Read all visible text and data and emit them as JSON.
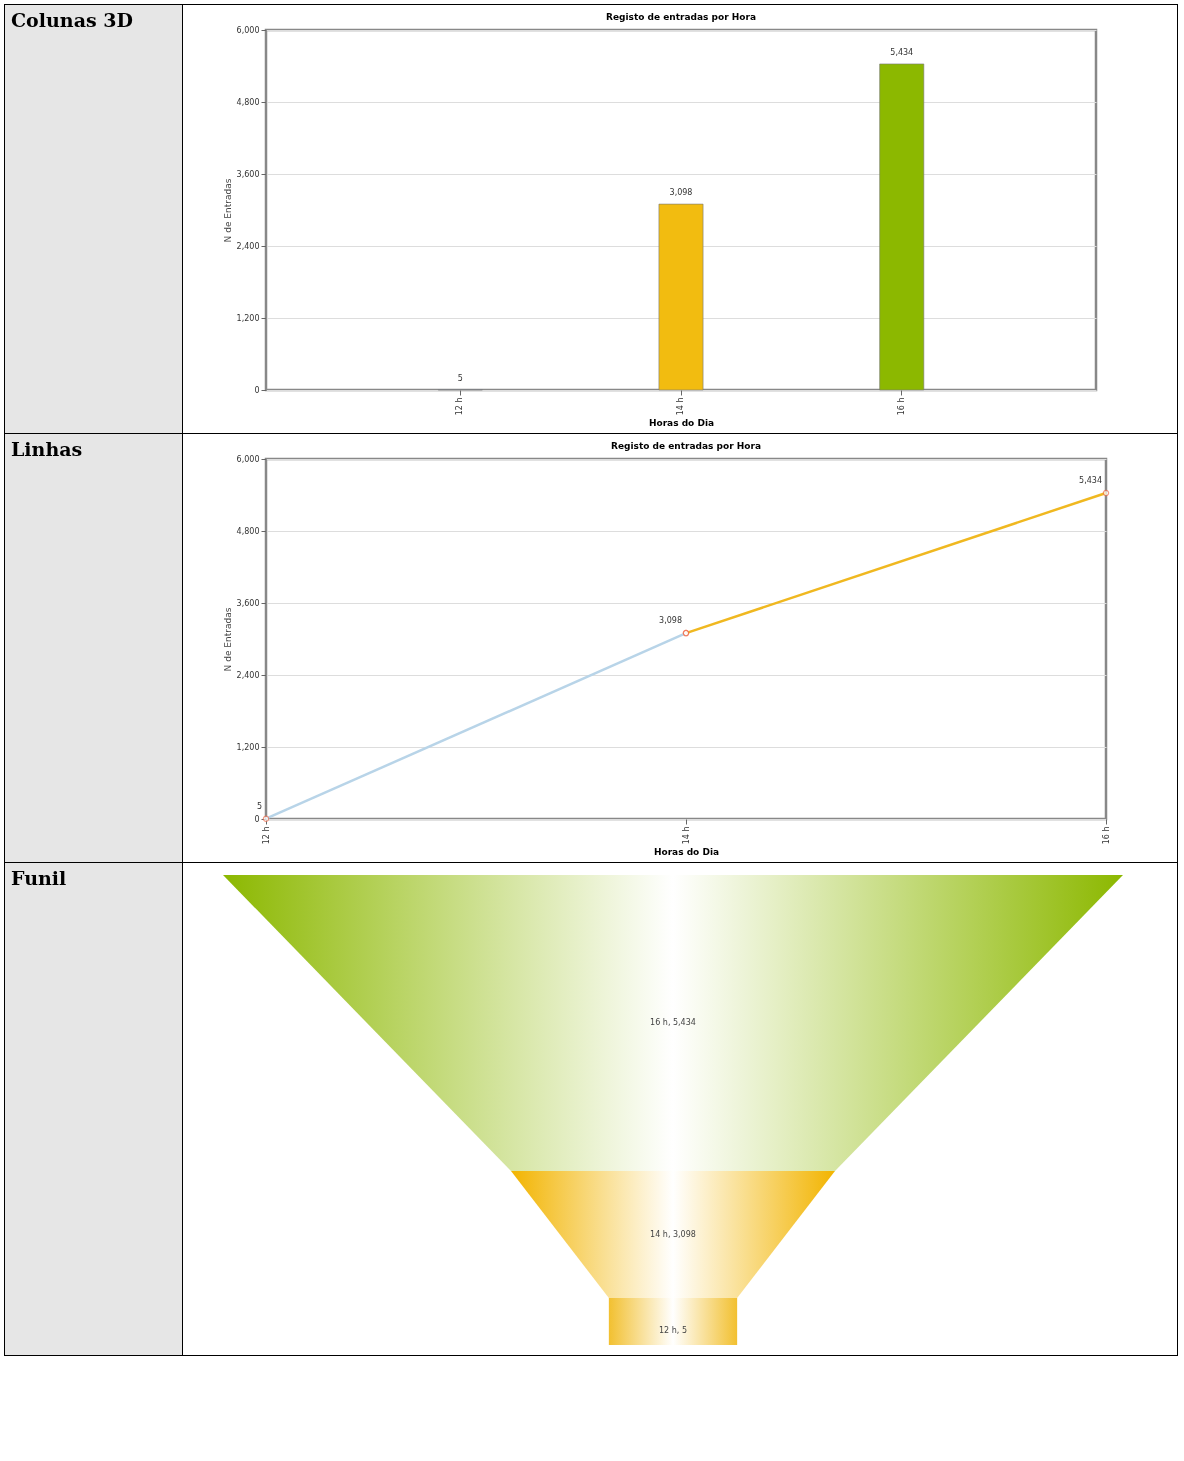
{
  "chart_data": [
    {
      "type": "bar",
      "title": "Registo de entradas por Hora",
      "xlabel": "Horas do Dia",
      "ylabel": "N de Entradas",
      "annotations": [
        "Colunas 3D"
      ],
      "categories": [
        "12 h",
        "14 h",
        "16 h"
      ],
      "values": [
        5,
        3098,
        5434
      ],
      "colors": [
        "#a8c8e0",
        "#f2bc10",
        "#8cb800"
      ],
      "value_labels": [
        "5",
        "3,098",
        "5,434"
      ],
      "ylim": [
        0,
        6000
      ],
      "yticks": [
        0,
        {
          "value": 1200,
          "label": "1,200"
        },
        {
          "value": 2400,
          "label": "2,400"
        },
        {
          "value": 3600,
          "label": "3,600"
        },
        {
          "value": 4800,
          "label": "4,800"
        },
        {
          "value": 6000,
          "label": "6,000"
        }
      ],
      "grid": "y"
    },
    {
      "type": "line",
      "title": "Registo de entradas por Hora",
      "xlabel": "Horas do Dia",
      "ylabel": "N de Entradas",
      "annotations": [
        "Linhas"
      ],
      "categories": [
        "12 h",
        "14 h",
        "16 h"
      ],
      "series": [
        {
          "color": "#b8d4e8",
          "values": [
            5,
            3098,
            null
          ],
          "value_labels": [
            "5",
            "3,098",
            null
          ]
        },
        {
          "color": "#f0b820",
          "values": [
            null,
            3098,
            5434
          ],
          "value_labels": [
            null,
            null,
            "5,434"
          ]
        }
      ],
      "ylim": [
        0,
        6000
      ],
      "yticks": [
        0,
        {
          "value": 1200,
          "label": "1,200"
        },
        {
          "value": 2400,
          "label": "2,400"
        },
        {
          "value": 3600,
          "label": "3,600"
        },
        {
          "value": 4800,
          "label": "4,800"
        },
        {
          "value": 6000,
          "label": "6,000"
        }
      ],
      "grid": "y",
      "marker": "circle",
      "line_style": "solid"
    },
    {
      "type": "other",
      "annotations": [
        "Funil"
      ],
      "values": [
        5434,
        3098,
        5
      ],
      "colors": [
        "#8cb800",
        "#f2b400",
        "#f2c030"
      ],
      "value_labels": [
        "16 h, 5,434",
        "14 h, 3,098",
        "12 h, 5"
      ]
    }
  ]
}
